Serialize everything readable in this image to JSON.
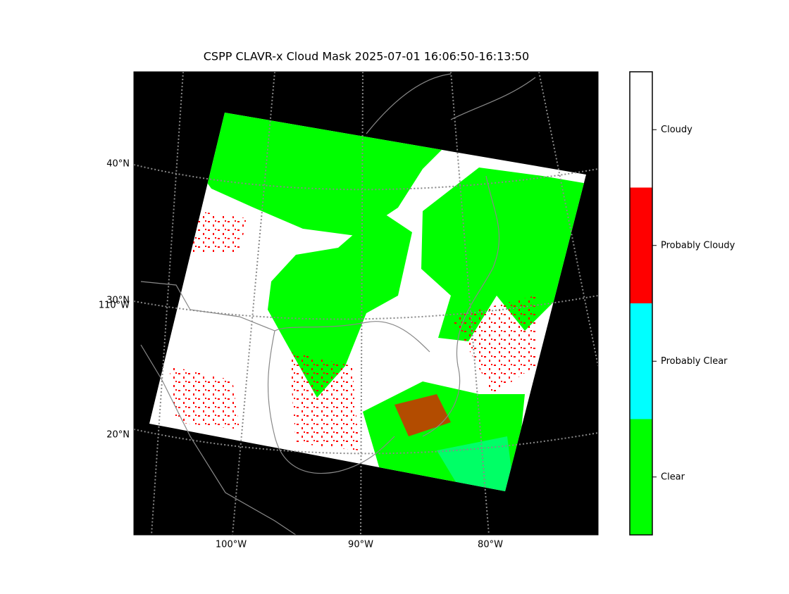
{
  "title": "CSPP CLAVR-x Cloud Mask 2025-07-01 16:06:50-16:13:50",
  "map": {
    "lat_labels": [
      "40°N",
      "30°N",
      "20°N"
    ],
    "lon_labels": [
      "110°W",
      "100°W",
      "90°W",
      "80°W"
    ]
  },
  "colorbar": {
    "categories": [
      "Cloudy",
      "Probably Cloudy",
      "Probably Clear",
      "Clear"
    ],
    "colors": [
      "#ffffff",
      "#ff0000",
      "#00ffff",
      "#00ff00"
    ]
  }
}
